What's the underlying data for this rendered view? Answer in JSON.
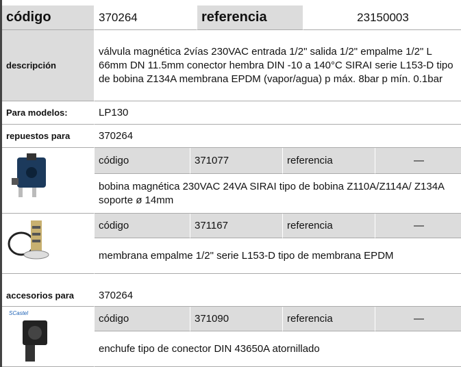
{
  "header": {
    "code_label": "código",
    "code": "370264",
    "ref_label": "referencia",
    "ref": "23150003"
  },
  "description": {
    "label": "descripción",
    "text": "válvula magnética  2vías 230VAC entrada 1/2\" salida 1/2\" empalme 1/2\" L 66mm DN 11.5mm conector hembra DIN -10 a 140°C SIRAI serie L153-D tipo de bobina Z134A membrana EPDM (vapor/agua) p máx. 8bar p mín. 0.1bar"
  },
  "models": {
    "label": "Para modelos:",
    "value": "LP130"
  },
  "spares": {
    "label": "repuestos para",
    "value": "370264",
    "parts": [
      {
        "code_label": "código",
        "code": "371077",
        "ref_label": "referencia",
        "ref": "—",
        "text": "bobina magnética  230VAC 24VA SIRAI tipo de bobina Z110A/Z114A/ Z134A soporte ø 14mm"
      },
      {
        "code_label": "código",
        "code": "371167",
        "ref_label": "referencia",
        "ref": "—",
        "text": "membrana  empalme 1/2\" serie L153-D tipo de membrana EPDM"
      }
    ]
  },
  "accessories": {
    "label": "accesorios para",
    "value": "370264",
    "parts": [
      {
        "brand": "SCastel",
        "code_label": "código",
        "code": "371090",
        "ref_label": "referencia",
        "ref": "—",
        "text": "enchufe  tipo de conector DIN 43650A atornillado"
      }
    ]
  }
}
